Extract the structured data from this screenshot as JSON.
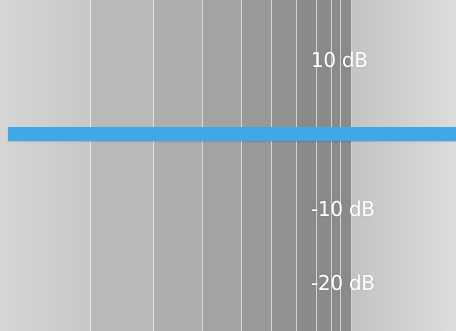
{
  "eq_graph": {
    "gain_labels": [
      {
        "id": "plus10",
        "text": "10 dB",
        "db": 10
      },
      {
        "id": "minus10",
        "text": "-10 dB",
        "db": -10
      },
      {
        "id": "minus20",
        "text": "-20 dB",
        "db": -20
      }
    ],
    "response_line": {
      "gain_db": 0,
      "color": "#3fa8e6"
    }
  }
}
